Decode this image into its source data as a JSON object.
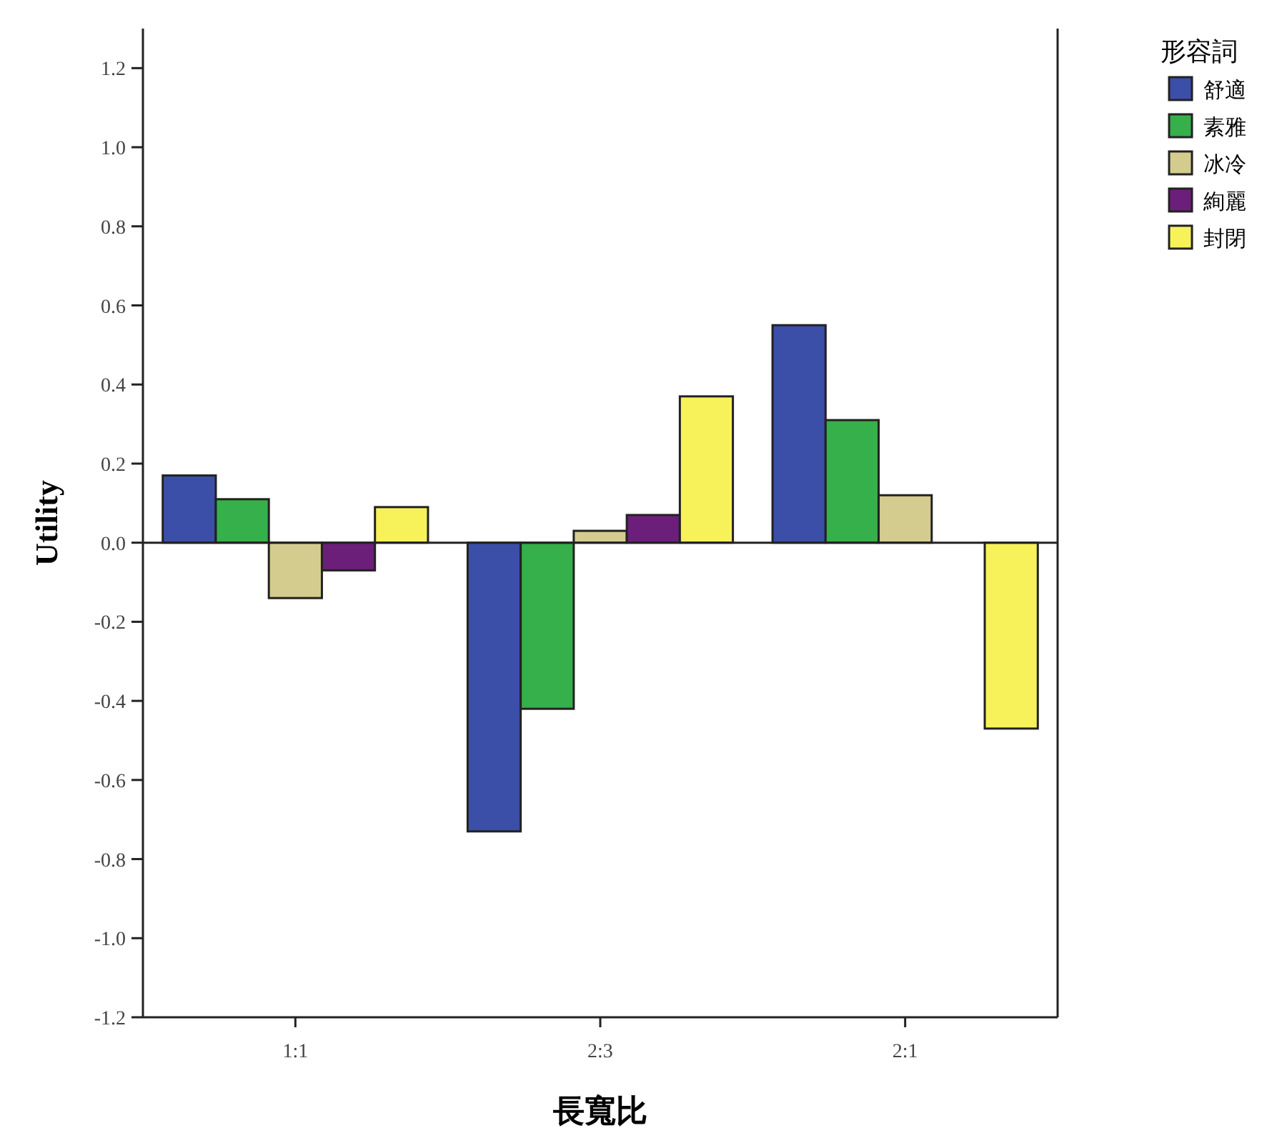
{
  "chart_data": {
    "type": "bar",
    "xlabel": "長寬比",
    "ylabel": "Utility",
    "legend_title": "形容詞",
    "categories": [
      "1:1",
      "2:3",
      "2:1"
    ],
    "series": [
      {
        "name": "舒適",
        "color": "#3b4fa8",
        "values": [
          0.17,
          -0.73,
          0.55
        ]
      },
      {
        "name": "素雅",
        "color": "#35b04a",
        "values": [
          0.11,
          -0.42,
          0.31
        ]
      },
      {
        "name": "冰冷",
        "color": "#d4cc8f",
        "values": [
          -0.14,
          0.03,
          0.12
        ]
      },
      {
        "name": "絢麗",
        "color": "#6c1f7a",
        "values": [
          -0.07,
          0.07,
          0.0
        ]
      },
      {
        "name": "封閉",
        "color": "#f8f25a",
        "values": [
          0.09,
          0.37,
          -0.47
        ]
      }
    ],
    "ylim": [
      -1.2,
      1.3
    ],
    "yticks": [
      -1.2,
      {
        "value": -1,
        "label": "-1.0"
      },
      -0.8,
      -0.6,
      -0.4,
      -0.2,
      {
        "value": 0,
        "label": "0.0"
      },
      0.2,
      0.4,
      0.6,
      0.8,
      {
        "value": 1,
        "label": "1.0"
      },
      1.2
    ],
    "ref_lines": [
      {
        "axis": "y",
        "value": 0.0,
        "label": null
      }
    ],
    "grid": false,
    "legend": "top right"
  }
}
